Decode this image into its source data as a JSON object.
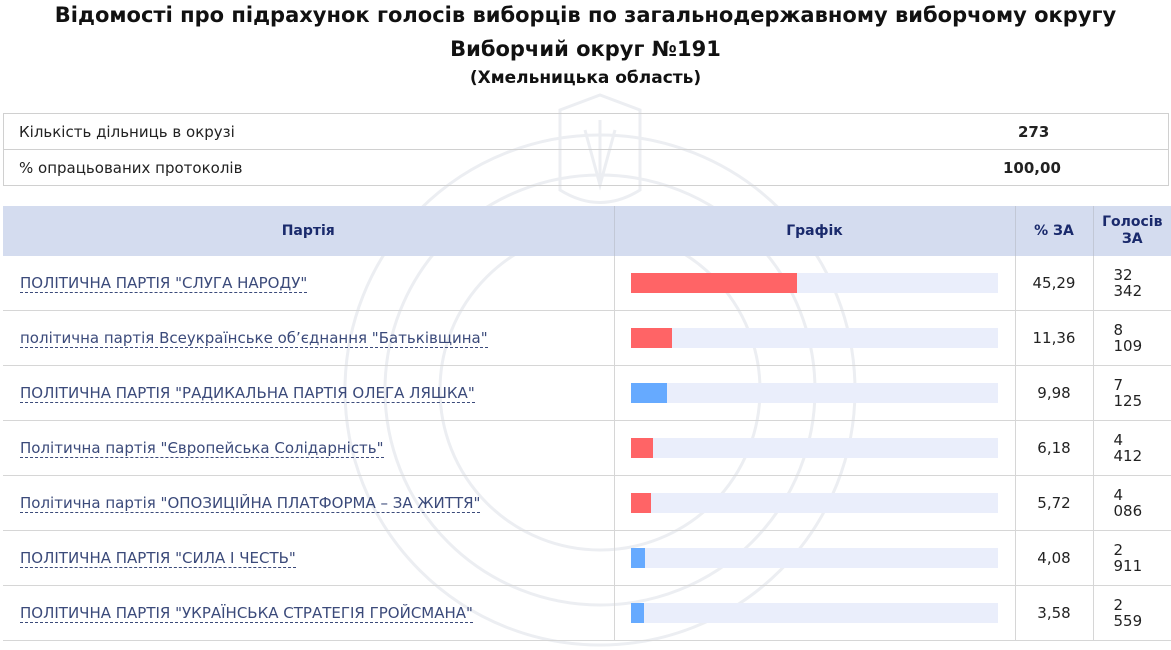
{
  "header": {
    "title": "Відомості про підрахунок голосів виборців по загальнодержавному виборчому округу",
    "subtitle": "Виборчий округ №191",
    "region": "(Хмельницька область)"
  },
  "summary": [
    {
      "label": "Кількість дільниць в окрузі",
      "value": "273"
    },
    {
      "label": "% опрацьованих протоколів",
      "value": "100,00"
    }
  ],
  "table": {
    "headers": {
      "party": "Партія",
      "chart": "Графік",
      "pct": "% ЗА",
      "votes": "Голосів ЗА"
    },
    "rows": [
      {
        "party": "ПОЛІТИЧНА ПАРТІЯ \"СЛУГА НАРОДУ\"",
        "pct": "45,29",
        "votes_line1": "32",
        "votes_line2": "342",
        "bar_fraction": 0.4529,
        "bar_color": "#ff6466"
      },
      {
        "party": "політична партія Всеукраїнське об’єднання \"Батьківщина\"",
        "pct": "11,36",
        "votes_line1": "8",
        "votes_line2": "109",
        "bar_fraction": 0.1136,
        "bar_color": "#ff6466"
      },
      {
        "party": "ПОЛІТИЧНА ПАРТІЯ \"РАДИКАЛЬНА ПАРТІЯ ОЛЕГА ЛЯШКА\"",
        "pct": "9,98",
        "votes_line1": "7",
        "votes_line2": "125",
        "bar_fraction": 0.0998,
        "bar_color": "#66aaff"
      },
      {
        "party": "Політична партія \"Європейська Солідарність\"",
        "pct": "6,18",
        "votes_line1": "4",
        "votes_line2": "412",
        "bar_fraction": 0.0618,
        "bar_color": "#ff6466"
      },
      {
        "party": "Політична партія \"ОПОЗИЦІЙНА ПЛАТФОРМА – ЗА ЖИТТЯ\"",
        "pct": "5,72",
        "votes_line1": "4",
        "votes_line2": "086",
        "bar_fraction": 0.0572,
        "bar_color": "#ff6466"
      },
      {
        "party": "ПОЛІТИЧНА ПАРТІЯ \"СИЛА І ЧЕСТЬ\"",
        "pct": "4,08",
        "votes_line1": "2",
        "votes_line2": "911",
        "bar_fraction": 0.0408,
        "bar_color": "#66aaff"
      },
      {
        "party": "ПОЛІТИЧНА ПАРТІЯ \"УКРАЇНСЬКА СТРАТЕГІЯ ГРОЙСМАНА\"",
        "pct": "3,58",
        "votes_line1": "2",
        "votes_line2": "559",
        "bar_fraction": 0.0358,
        "bar_color": "#66aaff"
      }
    ]
  },
  "watermark": {
    "icon": "cec-seal-watermark-icon"
  }
}
